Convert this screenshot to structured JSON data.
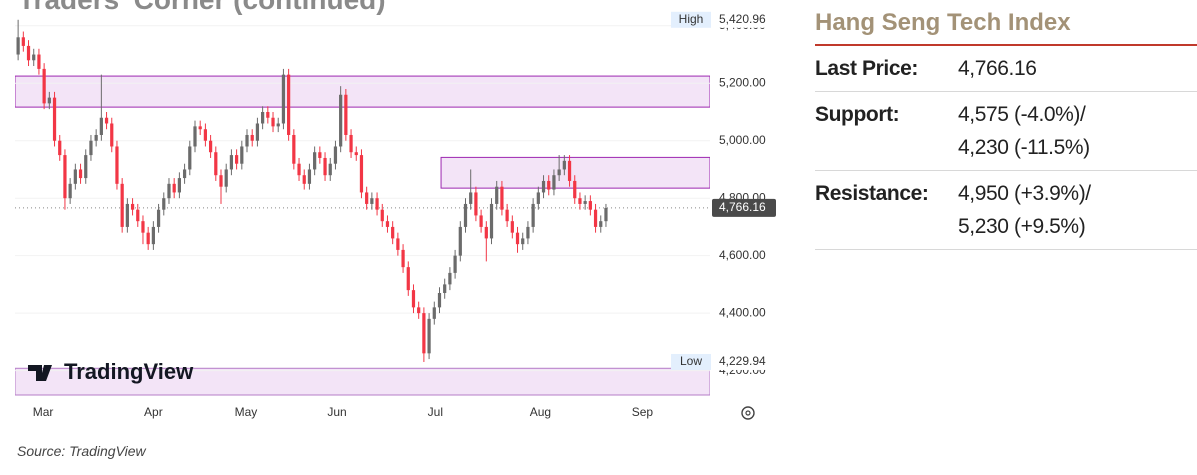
{
  "page_heading": "Traders' Corner (continued)",
  "chart_data": {
    "type": "candlestick",
    "colors": {
      "up": "#6b6b6b",
      "down": "#f23645"
    },
    "open": [
      5300,
      5360,
      5330,
      5280,
      5300,
      5250,
      5130,
      5150,
      5000,
      4950,
      4800,
      4850,
      4900,
      4870,
      4950,
      5000,
      5020,
      5080,
      5060,
      4980,
      4850,
      4700,
      4780,
      4760,
      4720,
      4680,
      4640,
      4700,
      4760,
      4800,
      4850,
      4820,
      4870,
      4900,
      4980,
      5050,
      5040,
      5000,
      4960,
      4880,
      4840,
      4900,
      4950,
      4920,
      4980,
      5020,
      5000,
      5060,
      5100,
      5080,
      5050,
      5060,
      5230,
      5020,
      4920,
      4880,
      4850,
      4900,
      4960,
      4940,
      4880,
      4920,
      4980,
      5160,
      5020,
      4960,
      4950,
      4820,
      4780,
      4800,
      4760,
      4720,
      4700,
      4660,
      4620,
      4560,
      4480,
      4420,
      4400,
      4260,
      4380,
      4420,
      4470,
      4500,
      4540,
      4600,
      4700,
      4780,
      4820,
      4740,
      4700,
      4660,
      4780,
      4840,
      4760,
      4720,
      4680,
      4640,
      4660,
      4700,
      4780,
      4820,
      4860,
      4830,
      4880,
      4900,
      4930,
      4860,
      4800,
      4780,
      4790,
      4760,
      4700,
      4720
    ],
    "high": [
      5420.96,
      5380,
      5350,
      5320,
      5320,
      5270,
      5170,
      5170,
      5020,
      4970,
      4870,
      4920,
      4920,
      4970,
      5020,
      5040,
      5230,
      5100,
      5080,
      5000,
      4870,
      4800,
      4800,
      4780,
      4740,
      4700,
      4720,
      4780,
      4820,
      4870,
      4870,
      4890,
      4920,
      5000,
      5070,
      5070,
      5060,
      5020,
      4980,
      4900,
      4920,
      4970,
      4970,
      5000,
      5040,
      5040,
      5080,
      5120,
      5120,
      5100,
      5080,
      5250,
      5250,
      5040,
      4940,
      4900,
      4920,
      4980,
      4980,
      4960,
      4940,
      5000,
      5190,
      5180,
      5040,
      4980,
      4970,
      4840,
      4820,
      4820,
      4780,
      4740,
      4720,
      4680,
      4640,
      4580,
      4500,
      4440,
      4420,
      4400,
      4440,
      4490,
      4520,
      4560,
      4620,
      4720,
      4800,
      4900,
      4840,
      4760,
      4720,
      4800,
      4860,
      4860,
      4780,
      4740,
      4700,
      4680,
      4720,
      4800,
      4840,
      4880,
      4880,
      4900,
      4950,
      4950,
      4950,
      4880,
      4820,
      4810,
      4810,
      4780,
      4740,
      4780
    ],
    "low": [
      5280,
      5310,
      5260,
      5260,
      5230,
      5110,
      5110,
      4980,
      4930,
      4760,
      4780,
      4830,
      4850,
      4850,
      4930,
      4980,
      5000,
      5040,
      4960,
      4830,
      4680,
      4680,
      4740,
      4700,
      4640,
      4620,
      4620,
      4680,
      4740,
      4780,
      4800,
      4800,
      4850,
      4880,
      4960,
      5020,
      4980,
      4940,
      4860,
      4780,
      4820,
      4880,
      4900,
      4900,
      4960,
      4980,
      4980,
      5040,
      5060,
      5030,
      5030,
      5040,
      5000,
      4900,
      4860,
      4830,
      4830,
      4880,
      4920,
      4860,
      4860,
      4900,
      4960,
      5000,
      4940,
      4930,
      4800,
      4760,
      4760,
      4740,
      4700,
      4680,
      4640,
      4600,
      4540,
      4460,
      4400,
      4380,
      4229.94,
      4240,
      4360,
      4400,
      4450,
      4480,
      4520,
      4580,
      4680,
      4760,
      4720,
      4680,
      4580,
      4640,
      4760,
      4740,
      4700,
      4660,
      4610,
      4620,
      4640,
      4680,
      4760,
      4800,
      4810,
      4810,
      4860,
      4880,
      4840,
      4780,
      4760,
      4760,
      4740,
      4680,
      4680,
      4700
    ],
    "close": [
      5360,
      5330,
      5280,
      5300,
      5250,
      5130,
      5150,
      5000,
      4950,
      4800,
      4850,
      4900,
      4870,
      4950,
      5000,
      5020,
      5080,
      5060,
      4980,
      4850,
      4700,
      4780,
      4760,
      4720,
      4680,
      4640,
      4700,
      4760,
      4800,
      4850,
      4820,
      4870,
      4900,
      4980,
      5050,
      5040,
      5000,
      4960,
      4880,
      4840,
      4900,
      4950,
      4920,
      4980,
      5020,
      5000,
      5060,
      5100,
      5080,
      5050,
      5060,
      5230,
      5020,
      4920,
      4880,
      4850,
      4900,
      4960,
      4940,
      4880,
      4920,
      4980,
      5160,
      5020,
      4960,
      4950,
      4820,
      4780,
      4800,
      4760,
      4720,
      4700,
      4660,
      4620,
      4560,
      4480,
      4420,
      4400,
      4260,
      4380,
      4420,
      4470,
      4500,
      4540,
      4600,
      4700,
      4780,
      4820,
      4740,
      4700,
      4660,
      4780,
      4840,
      4760,
      4720,
      4680,
      4640,
      4660,
      4700,
      4780,
      4820,
      4860,
      4830,
      4880,
      4900,
      4930,
      4860,
      4800,
      4780,
      4790,
      4760,
      4700,
      4720,
      4766.16
    ],
    "xlim": [
      -0.6,
      133
    ],
    "xticks": [
      {
        "value": 4.8,
        "label": "Mar"
      },
      {
        "value": 26,
        "label": "Apr"
      },
      {
        "value": 43.8,
        "label": "May"
      },
      {
        "value": 61.3,
        "label": "Jun"
      },
      {
        "value": 80.2,
        "label": "Jul"
      },
      {
        "value": 100.4,
        "label": "Aug"
      },
      {
        "value": 120,
        "label": "Sep"
      }
    ],
    "ylim": [
      4115,
      5455
    ],
    "yticks": [
      {
        "value": 4200,
        "label": "4,200.00"
      },
      {
        "value": 4400,
        "label": "4,400.00"
      },
      {
        "value": 4600,
        "label": "4,600.00"
      },
      {
        "value": 4800,
        "label": "4,800.00"
      },
      {
        "value": 5000,
        "label": "5,000.00"
      },
      {
        "value": 5200,
        "label": "5,200.00"
      },
      {
        "value": 5400,
        "label": "5,400.00"
      }
    ],
    "zones": [
      {
        "low": 5117,
        "high": 5225,
        "start": -0.6,
        "color": "#f3e4f7",
        "border": "#9c27b0"
      },
      {
        "low": 4835,
        "high": 4942,
        "start": 81.3,
        "color": "#f3e4f7",
        "border": "#9c27b0"
      },
      {
        "low": 4115,
        "high": 4208,
        "start": -0.6,
        "color": "#f3e4f7",
        "border": "#b47cc7"
      }
    ],
    "high_marker": {
      "label": "High",
      "value": 5420.96,
      "value_label": "5,420.96"
    },
    "low_marker": {
      "label": "Low",
      "value": 4229.94,
      "value_label": "4,229.94"
    },
    "last_marker": {
      "value": 4766.16,
      "label": "4,766.16",
      "color": "#4a4a4a"
    },
    "logo": "TradingView"
  },
  "side_table": {
    "title": "Hang Seng Tech Index",
    "rows": [
      {
        "label": "Last Price:",
        "lines": [
          "4,766.16"
        ]
      },
      {
        "label": "Support:",
        "lines": [
          "4,575 (-4.0%)/",
          "4,230 (-11.5%)"
        ]
      },
      {
        "label": "Resistance:",
        "lines": [
          "4,950 (+3.9%)/",
          "5,230 (+9.5%)"
        ]
      }
    ]
  },
  "source": "Source: TradingView"
}
